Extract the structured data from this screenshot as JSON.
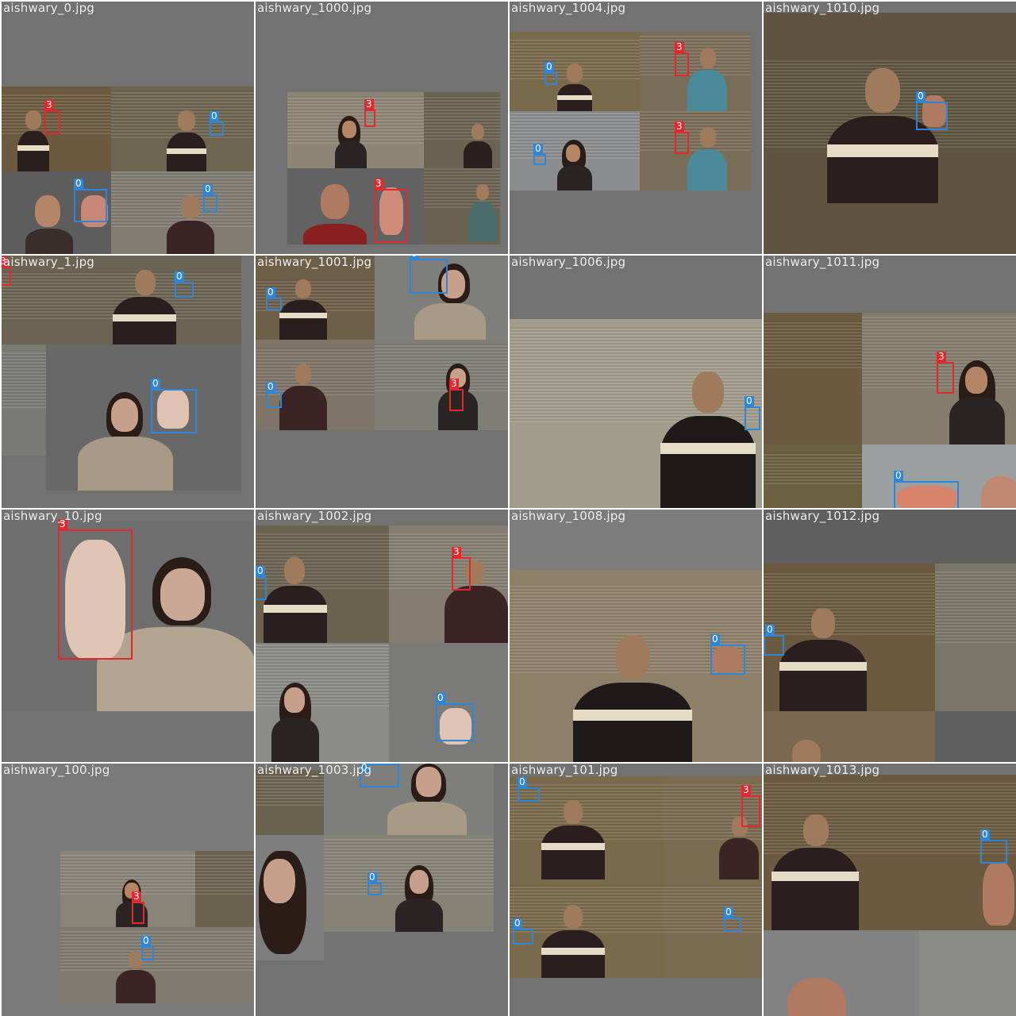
{
  "mosaic": {
    "background_color": "#727272",
    "class_colors": {
      "0": "#2f86d6",
      "3": "#e0282e"
    },
    "cells": [
      {
        "filename": "aishwary_0.jpg",
        "labels": [
          "3",
          "0",
          "0",
          "0"
        ]
      },
      {
        "filename": "aishwary_1000.jpg",
        "labels": [
          "3",
          "3"
        ]
      },
      {
        "filename": "aishwary_1004.jpg",
        "labels": [
          "0",
          "3",
          "0",
          "3"
        ]
      },
      {
        "filename": "aishwary_1010.jpg",
        "labels": [
          "0"
        ]
      },
      {
        "filename": "aishwary_1.jpg",
        "labels": [
          "3",
          "0",
          "0"
        ]
      },
      {
        "filename": "aishwary_1001.jpg",
        "labels": [
          "0",
          "0",
          "0",
          "3"
        ]
      },
      {
        "filename": "aishwary_1006.jpg",
        "labels": [
          "0"
        ]
      },
      {
        "filename": "aishwary_1011.jpg",
        "labels": [
          "3",
          "0"
        ]
      },
      {
        "filename": "aishwary_10.jpg",
        "labels": [
          "3"
        ]
      },
      {
        "filename": "aishwary_1002.jpg",
        "labels": [
          "0",
          "3",
          "0"
        ]
      },
      {
        "filename": "aishwary_1008.jpg",
        "labels": [
          "0"
        ]
      },
      {
        "filename": "aishwary_1012.jpg",
        "labels": [
          "0"
        ]
      },
      {
        "filename": "aishwary_100.jpg",
        "labels": [
          "3",
          "0"
        ]
      },
      {
        "filename": "aishwary_1003.jpg",
        "labels": [
          "0",
          "0"
        ]
      },
      {
        "filename": "aishwary_101.jpg",
        "labels": [
          "0",
          "3",
          "0",
          "0"
        ]
      },
      {
        "filename": "aishwary_1013.jpg",
        "labels": [
          "0"
        ]
      }
    ]
  }
}
